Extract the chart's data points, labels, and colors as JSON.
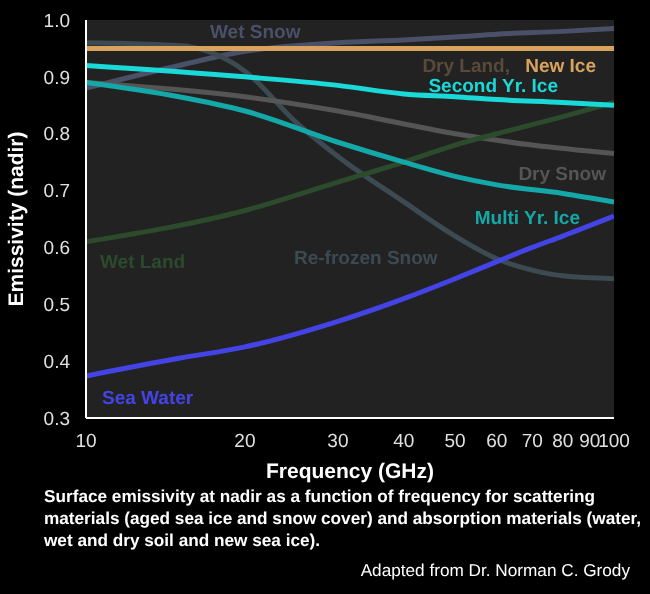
{
  "chart_data": {
    "type": "line",
    "xlabel": "Frequency (GHz)",
    "ylabel": "Emissivity (nadir)",
    "log": "x",
    "xlim": [
      10,
      100
    ],
    "xticks": [
      10,
      20,
      30,
      40,
      50,
      60,
      70,
      80,
      90,
      100
    ],
    "ylim": [
      0.3,
      1.0
    ],
    "yticks": [
      0.3,
      0.4,
      0.5,
      0.6,
      0.7,
      0.8,
      0.9,
      {
        "value": 1.0,
        "label": "1.0"
      }
    ],
    "marker": "none",
    "line_style": "solid",
    "series": [
      {
        "name": "Wet Snow",
        "color": "#4a5068",
        "x": [
          10,
          15,
          20,
          30,
          40,
          50,
          60,
          80,
          100
        ],
        "values": [
          0.88,
          0.92,
          0.945,
          0.96,
          0.965,
          0.97,
          0.975,
          0.98,
          0.985
        ]
      },
      {
        "name": "Re-frozen Snow",
        "color": "#3c4a52",
        "x": [
          10,
          15,
          20,
          25,
          30,
          40,
          50,
          60,
          70,
          80,
          100
        ],
        "values": [
          0.96,
          0.955,
          0.91,
          0.82,
          0.76,
          0.68,
          0.62,
          0.58,
          0.56,
          0.55,
          0.545
        ]
      },
      {
        "name": "Dry Snow",
        "color": "#555555",
        "x": [
          10,
          20,
          30,
          50,
          70,
          100
        ],
        "values": [
          0.89,
          0.865,
          0.84,
          0.8,
          0.78,
          0.765
        ]
      },
      {
        "name": "Wet Land",
        "color": "#2c4a2c",
        "x": [
          10,
          20,
          30,
          40,
          50,
          60,
          80,
          100
        ],
        "values": [
          0.61,
          0.665,
          0.715,
          0.75,
          0.78,
          0.8,
          0.83,
          0.855
        ]
      },
      {
        "name": "New Ice",
        "color": "#d9a35e",
        "x": [
          10,
          100
        ],
        "values": [
          0.95,
          0.95
        ]
      },
      {
        "name": "Multi Yr. Ice",
        "color": "#15a8a8",
        "x": [
          10,
          15,
          20,
          30,
          40,
          50,
          60,
          80,
          100
        ],
        "values": [
          0.89,
          0.865,
          0.84,
          0.785,
          0.75,
          0.725,
          0.71,
          0.695,
          0.68
        ]
      },
      {
        "name": "Second Yr. Ice",
        "color": "#1ad9d9",
        "x": [
          10,
          20,
          30,
          40,
          50,
          60,
          80,
          100
        ],
        "values": [
          0.92,
          0.9,
          0.885,
          0.87,
          0.865,
          0.86,
          0.855,
          0.85
        ]
      },
      {
        "name": "Sea Water",
        "color": "#4444e6",
        "x": [
          10,
          15,
          20,
          30,
          40,
          50,
          60,
          70,
          80,
          100
        ],
        "values": [
          0.374,
          0.405,
          0.425,
          0.47,
          0.51,
          0.545,
          0.575,
          0.6,
          0.62,
          0.655
        ]
      }
    ],
    "annotations": [
      "Dry Land,",
      "Surface emissivity at nadir as a function of frequency for scattering materials (aged sea ice and snow cover) and absorption materials (water, wet and dry soil and new sea ice).",
      "Adapted from Dr. Norman C. Grody"
    ]
  }
}
